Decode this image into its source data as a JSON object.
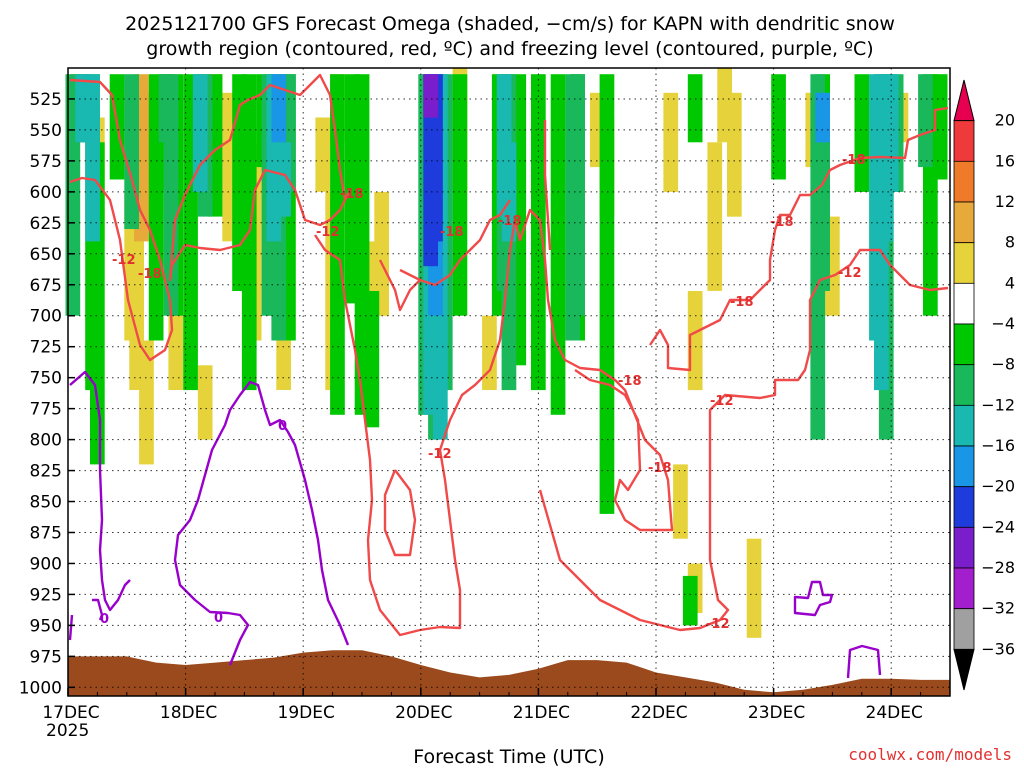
{
  "chart_data": {
    "type": "heatmap",
    "title_line1": "2025121700 GFS Forecast Omega (shaded, −cm/s) for KAPN with dendritic snow",
    "title_line2": "growth region (contoured, red, ºC) and freezing level (contoured, purple, ºC)",
    "xlabel": "Forecast Time (UTC)",
    "credit": "coolwx.com/models",
    "x_ticks": [
      "17DEC",
      "18DEC",
      "19DEC",
      "20DEC",
      "21DEC",
      "22DEC",
      "23DEC",
      "24DEC"
    ],
    "x_tick_year": "2025",
    "xlim_hours": [
      0,
      180
    ],
    "y_ticks": [
      525,
      550,
      575,
      600,
      625,
      650,
      675,
      700,
      725,
      750,
      775,
      800,
      825,
      850,
      875,
      900,
      925,
      950,
      975,
      1000
    ],
    "ylim_hpa": [
      500,
      1007
    ],
    "colorbar": {
      "levels": [
        "20",
        "16",
        "12",
        "8",
        "4",
        "−4",
        "−8",
        "−12",
        "−16",
        "−20",
        "−24",
        "−28",
        "−32",
        "−36"
      ],
      "colors": [
        "#e6004f",
        "#ee3a3a",
        "#ee7a2a",
        "#e6a93a",
        "#e6d23a",
        "#ffffff",
        "#00c800",
        "#19b85a",
        "#19b8b0",
        "#1a96e6",
        "#1e3cdc",
        "#7a1ecc",
        "#a31ecc",
        "#a0a0a0",
        "#000000"
      ]
    },
    "contour_labels": [
      {
        "text": "-18",
        "color": "red"
      },
      {
        "text": "-18",
        "color": "red"
      },
      {
        "text": "-12",
        "color": "red"
      },
      {
        "text": "-18",
        "color": "red"
      },
      {
        "text": "-18",
        "color": "red"
      },
      {
        "text": "-12",
        "color": "red"
      },
      {
        "text": "-18",
        "color": "red"
      },
      {
        "text": "-18",
        "color": "red"
      },
      {
        "text": "-12",
        "color": "red"
      },
      {
        "text": "-18",
        "color": "red"
      },
      {
        "text": "-12",
        "color": "red"
      },
      {
        "text": "-12",
        "color": "red"
      },
      {
        "text": "-18",
        "color": "red"
      },
      {
        "text": "-18",
        "color": "red"
      },
      {
        "text": "-12",
        "color": "red"
      },
      {
        "text": "0",
        "color": "purple"
      },
      {
        "text": "0",
        "color": "purple"
      },
      {
        "text": "0",
        "color": "purple"
      }
    ],
    "series": [
      {
        "name": "omega_positive_4to8",
        "cells": [
          [
            6,
            540,
            640
          ],
          [
            13,
            600,
            720
          ],
          [
            14,
            620,
            760
          ],
          [
            16,
            720,
            820
          ],
          [
            22,
            630,
            760
          ],
          [
            28,
            740,
            800
          ],
          [
            33,
            520,
            640
          ],
          [
            38,
            560,
            720
          ],
          [
            44,
            700,
            760
          ],
          [
            52,
            540,
            600
          ],
          [
            54,
            600,
            760
          ],
          [
            62,
            640,
            700
          ],
          [
            64,
            600,
            700
          ],
          [
            80,
            500,
            600
          ],
          [
            86,
            700,
            760
          ],
          [
            96,
            560,
            680
          ],
          [
            108,
            520,
            580
          ],
          [
            110,
            540,
            620
          ],
          [
            123,
            520,
            600
          ],
          [
            134,
            500,
            560
          ],
          [
            128,
            680,
            760
          ],
          [
            132,
            560,
            680
          ],
          [
            136,
            520,
            620
          ],
          [
            152,
            520,
            580
          ],
          [
            156,
            620,
            700
          ],
          [
            170,
            520,
            560
          ],
          [
            125,
            820,
            880
          ],
          [
            140,
            880,
            960
          ],
          [
            128,
            900,
            940
          ]
        ]
      },
      {
        "name": "omega_positive_8to12",
        "cells": [
          [
            15,
            505,
            640
          ],
          [
            17,
            520,
            630
          ],
          [
            30,
            505,
            540
          ],
          [
            55,
            505,
            560
          ],
          [
            74,
            505,
            560
          ]
        ]
      },
      {
        "name": "omega_negative_4to8",
        "cells": [
          [
            2,
            505,
            560
          ],
          [
            5,
            505,
            760
          ],
          [
            6,
            560,
            820
          ],
          [
            10,
            505,
            590
          ],
          [
            18,
            505,
            720
          ],
          [
            20,
            505,
            600
          ],
          [
            22,
            505,
            700
          ],
          [
            25,
            505,
            760
          ],
          [
            30,
            505,
            620
          ],
          [
            35,
            505,
            680
          ],
          [
            37,
            505,
            760
          ],
          [
            40,
            505,
            580
          ],
          [
            42,
            505,
            700
          ],
          [
            45,
            505,
            720
          ],
          [
            55,
            505,
            780
          ],
          [
            58,
            505,
            690
          ],
          [
            60,
            505,
            780
          ],
          [
            62,
            680,
            790
          ],
          [
            74,
            505,
            620
          ],
          [
            76,
            505,
            700
          ],
          [
            80,
            505,
            700
          ],
          [
            88,
            505,
            700
          ],
          [
            92,
            505,
            740
          ],
          [
            96,
            505,
            760
          ],
          [
            100,
            505,
            780
          ],
          [
            104,
            505,
            720
          ],
          [
            128,
            505,
            560
          ],
          [
            145,
            505,
            590
          ],
          [
            154,
            505,
            600
          ],
          [
            162,
            505,
            600
          ],
          [
            176,
            505,
            700
          ],
          [
            178,
            505,
            590
          ],
          [
            110,
            505,
            860
          ],
          [
            127,
            910,
            950
          ]
        ]
      },
      {
        "name": "omega_negative_8to12",
        "cells": [
          [
            1,
            505,
            700
          ],
          [
            3,
            505,
            560
          ],
          [
            13,
            505,
            630
          ],
          [
            20,
            505,
            560
          ],
          [
            21,
            505,
            700
          ],
          [
            27,
            505,
            580
          ],
          [
            28,
            505,
            620
          ],
          [
            41,
            505,
            700
          ],
          [
            43,
            505,
            720
          ],
          [
            43,
            540,
            580
          ],
          [
            44,
            505,
            620
          ],
          [
            45,
            505,
            600
          ],
          [
            73,
            505,
            780
          ],
          [
            75,
            505,
            800
          ],
          [
            77,
            505,
            760
          ],
          [
            89,
            505,
            680
          ],
          [
            90,
            505,
            760
          ],
          [
            103,
            505,
            720
          ],
          [
            104,
            505,
            700
          ],
          [
            153,
            505,
            800
          ],
          [
            154,
            520,
            680
          ],
          [
            166,
            505,
            720
          ],
          [
            167,
            505,
            800
          ],
          [
            169,
            505,
            600
          ],
          [
            175,
            505,
            580
          ]
        ]
      },
      {
        "name": "omega_negative_12to16",
        "cells": [
          [
            3,
            505,
            560
          ],
          [
            5,
            505,
            640
          ],
          [
            27,
            505,
            600
          ],
          [
            42,
            505,
            640
          ],
          [
            44,
            560,
            620
          ],
          [
            74,
            505,
            780
          ],
          [
            76,
            505,
            800
          ],
          [
            89,
            505,
            620
          ],
          [
            90,
            560,
            640
          ],
          [
            165,
            505,
            720
          ],
          [
            166,
            505,
            760
          ],
          [
            167,
            505,
            640
          ],
          [
            168,
            505,
            600
          ]
        ]
      },
      {
        "name": "omega_negative_16to20",
        "cells": [
          [
            43,
            505,
            560
          ],
          [
            75,
            505,
            700
          ],
          [
            154,
            520,
            560
          ]
        ]
      },
      {
        "name": "omega_negative_20to24",
        "cells": [
          [
            74,
            505,
            660
          ],
          [
            75,
            505,
            640
          ]
        ]
      },
      {
        "name": "omega_negative_24to28",
        "cells": [
          [
            74,
            505,
            540
          ]
        ]
      }
    ],
    "terrain_surface_pressure_hpa": [
      [
        0,
        975
      ],
      [
        12,
        975
      ],
      [
        18,
        980
      ],
      [
        24,
        982
      ],
      [
        30,
        980
      ],
      [
        36,
        978
      ],
      [
        42,
        976
      ],
      [
        48,
        972
      ],
      [
        54,
        970
      ],
      [
        60,
        970
      ],
      [
        66,
        975
      ],
      [
        72,
        982
      ],
      [
        78,
        988
      ],
      [
        84,
        992
      ],
      [
        90,
        990
      ],
      [
        96,
        985
      ],
      [
        102,
        978
      ],
      [
        108,
        978
      ],
      [
        114,
        980
      ],
      [
        120,
        988
      ],
      [
        126,
        992
      ],
      [
        132,
        996
      ],
      [
        138,
        1002
      ],
      [
        144,
        1004
      ],
      [
        150,
        1002
      ],
      [
        156,
        998
      ],
      [
        162,
        993
      ],
      [
        168,
        993
      ],
      [
        174,
        994
      ],
      [
        180,
        994
      ]
    ]
  }
}
